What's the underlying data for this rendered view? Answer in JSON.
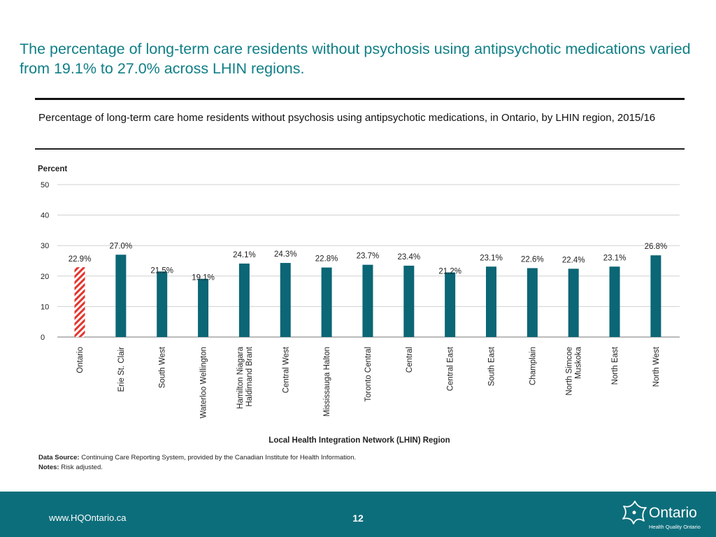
{
  "slide": {
    "headline": "The percentage of long-term care residents without psychosis using antipsychotic medications varied from 19.1% to 27.0% across LHIN regions.",
    "subtitle": "Percentage of long-term care home residents without psychosis using antipsychotic medications, in Ontario, by LHIN region, 2015/16",
    "source_label": "Data Source:",
    "source_text": "Continuing Care Reporting System, provided by the Canadian Institute for Health Information.",
    "notes_label": "Notes:",
    "notes_text": "Risk adjusted.",
    "footer_url": "www.HQOntario.ca",
    "page_number": "12",
    "logo_word": "Ontario",
    "logo_sub": "Health Quality Ontario"
  },
  "colors": {
    "headline": "#0f7f86",
    "bar": "#0b6675",
    "ontario_hatch": "#e3352e",
    "footer": "#0d6e7b"
  },
  "chart_data": {
    "type": "bar",
    "ylabel": "Percent",
    "xlabel": "Local Health Integration Network (LHIN) Region",
    "ylim": [
      0,
      50
    ],
    "yticks": [
      0,
      10,
      20,
      30,
      40,
      50
    ],
    "grid": true,
    "categories": [
      [
        "Ontario"
      ],
      [
        "Erie St. Clair"
      ],
      [
        "South West"
      ],
      [
        "Waterloo Wellington"
      ],
      [
        "Hamilton Niagara",
        "Haldimand Brant"
      ],
      [
        "Central West"
      ],
      [
        "Mississauga Halton"
      ],
      [
        "Toronto Central"
      ],
      [
        "Central"
      ],
      [
        "Central East"
      ],
      [
        "South East"
      ],
      [
        "Champlain"
      ],
      [
        "North Simcoe",
        "Muskoka"
      ],
      [
        "North East"
      ],
      [
        "North West"
      ]
    ],
    "values": [
      22.9,
      27.0,
      21.5,
      19.1,
      24.1,
      24.3,
      22.8,
      23.7,
      23.4,
      21.2,
      23.1,
      22.6,
      22.4,
      23.1,
      26.8
    ],
    "labels": [
      "22.9%",
      "27.0%",
      "21.5%",
      "19.1%",
      "24.1%",
      "24.3%",
      "22.8%",
      "23.7%",
      "23.4%",
      "21.2%",
      "23.1%",
      "22.6%",
      "22.4%",
      "23.1%",
      "26.8%"
    ],
    "highlight_index": 0
  }
}
